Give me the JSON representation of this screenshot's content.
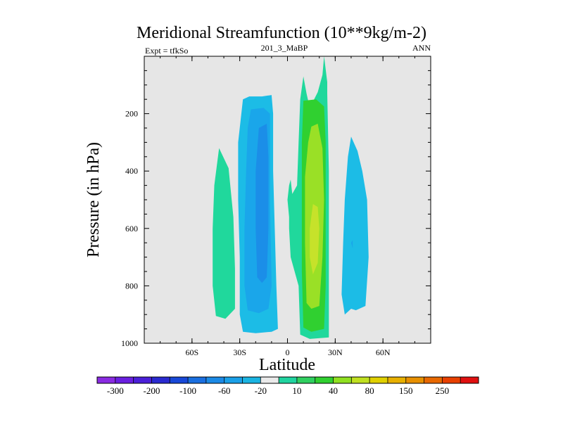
{
  "chart_data": {
    "type": "contour",
    "title": "Meridional Streamfunction (10**9kg/m-2)",
    "subtitle_left": "Expt = tfkSo",
    "subtitle_center": "201_3_MaBP",
    "subtitle_right": "ANN",
    "xlabel": "Latitude",
    "ylabel": "Pressure (in hPa)",
    "xlim": [
      -90,
      90
    ],
    "ylim": [
      1000,
      0
    ],
    "x_ticks": [
      {
        "value": -60,
        "label": "60S"
      },
      {
        "value": -30,
        "label": "30S"
      },
      {
        "value": 0,
        "label": "0"
      },
      {
        "value": 30,
        "label": "30N"
      },
      {
        "value": 60,
        "label": "60N"
      }
    ],
    "y_ticks": [
      {
        "value": 200,
        "label": "200"
      },
      {
        "value": 400,
        "label": "400"
      },
      {
        "value": 600,
        "label": "600"
      },
      {
        "value": 800,
        "label": "800"
      },
      {
        "value": 1000,
        "label": "1000"
      }
    ],
    "background_color": "#e6e6e6",
    "colorbar": {
      "colors": [
        "#8a2be2",
        "#6a1fe0",
        "#4a1fd8",
        "#2a2ad0",
        "#1848d8",
        "#1a6fe0",
        "#1b8ae6",
        "#1aa0e8",
        "#1ab4e2",
        "#eaeaea",
        "#20d4a0",
        "#30d060",
        "#30d030",
        "#90e020",
        "#c0e020",
        "#e0d000",
        "#e8b000",
        "#e89000",
        "#e86800",
        "#e84000",
        "#e01010"
      ],
      "labels": [
        "-300",
        "-200",
        "-100",
        "-60",
        "-20",
        "10",
        "40",
        "80",
        "150",
        "250"
      ]
    },
    "regions": [
      {
        "level": 10,
        "color": "#20d89c",
        "points": [
          [
            -43,
            320
          ],
          [
            -37,
            390
          ],
          [
            -34,
            560
          ],
          [
            -33,
            740
          ],
          [
            -33,
            880
          ],
          [
            -39,
            915
          ],
          [
            -45,
            905
          ],
          [
            -47,
            800
          ],
          [
            -47,
            600
          ],
          [
            -46,
            450
          ]
        ]
      },
      {
        "level": -20,
        "color": "#1cbce6",
        "points": [
          [
            -28,
            150
          ],
          [
            -24,
            140
          ],
          [
            -16,
            140
          ],
          [
            -10,
            135
          ],
          [
            -9,
            200
          ],
          [
            -9,
            400
          ],
          [
            -8,
            600
          ],
          [
            -7,
            800
          ],
          [
            -6,
            950
          ],
          [
            -10,
            960
          ],
          [
            -20,
            965
          ],
          [
            -28,
            960
          ],
          [
            -30,
            900
          ],
          [
            -30,
            700
          ],
          [
            -31,
            500
          ],
          [
            -31,
            300
          ]
        ]
      },
      {
        "level": -60,
        "color": "#1aa6ea",
        "points": [
          [
            -23,
            185
          ],
          [
            -15,
            180
          ],
          [
            -11,
            200
          ],
          [
            -11,
            500
          ],
          [
            -10,
            800
          ],
          [
            -12,
            880
          ],
          [
            -18,
            895
          ],
          [
            -25,
            885
          ],
          [
            -27,
            800
          ],
          [
            -27,
            600
          ],
          [
            -26,
            400
          ],
          [
            -25,
            250
          ]
        ]
      },
      {
        "level": -100,
        "color": "#1b8ee8",
        "points": [
          [
            -18,
            250
          ],
          [
            -13,
            235
          ],
          [
            -12,
            350
          ],
          [
            -12,
            600
          ],
          [
            -13,
            770
          ],
          [
            -16,
            790
          ],
          [
            -19,
            770
          ],
          [
            -20,
            600
          ],
          [
            -20,
            400
          ]
        ]
      },
      {
        "level": -20,
        "color": "#1cbce6",
        "points": [
          [
            40,
            280
          ],
          [
            44,
            330
          ],
          [
            47,
            400
          ],
          [
            50,
            500
          ],
          [
            51,
            700
          ],
          [
            49,
            870
          ],
          [
            43,
            885
          ],
          [
            40,
            880
          ],
          [
            36,
            900
          ],
          [
            34,
            830
          ],
          [
            35,
            650
          ],
          [
            36,
            500
          ],
          [
            38,
            350
          ]
        ]
      },
      {
        "level": -60,
        "color": "#1aa6ea",
        "points": [
          [
            40,
            650
          ],
          [
            41,
            640
          ],
          [
            41,
            670
          ]
        ]
      },
      {
        "level": 10,
        "color": "#20d89c",
        "points": [
          [
            10,
            70
          ],
          [
            12,
            130
          ],
          [
            14,
            180
          ],
          [
            19,
            125
          ],
          [
            22,
            65
          ],
          [
            23,
            0
          ],
          [
            25,
            90
          ],
          [
            25,
            130
          ],
          [
            26,
            400
          ],
          [
            26,
            700
          ],
          [
            26,
            980
          ],
          [
            14,
            985
          ],
          [
            8,
            970
          ],
          [
            7,
            800
          ],
          [
            4,
            740
          ],
          [
            2,
            700
          ],
          [
            1,
            600
          ],
          [
            1,
            560
          ],
          [
            0,
            500
          ],
          [
            1,
            450
          ],
          [
            2,
            430
          ],
          [
            3,
            480
          ],
          [
            6,
            450
          ],
          [
            7,
            300
          ],
          [
            8,
            150
          ]
        ]
      },
      {
        "level": 40,
        "color": "#30d030",
        "points": [
          [
            10,
            155
          ],
          [
            18,
            150
          ],
          [
            23,
            175
          ],
          [
            24,
            300
          ],
          [
            24,
            600
          ],
          [
            24,
            800
          ],
          [
            23,
            950
          ],
          [
            15,
            960
          ],
          [
            10,
            945
          ],
          [
            9,
            750
          ],
          [
            9,
            500
          ],
          [
            9,
            300
          ]
        ]
      },
      {
        "level": 80,
        "color": "#9ae026",
        "points": [
          [
            15,
            245
          ],
          [
            19,
            235
          ],
          [
            22,
            320
          ],
          [
            23,
            500
          ],
          [
            22,
            700
          ],
          [
            20,
            870
          ],
          [
            15,
            880
          ],
          [
            12,
            860
          ],
          [
            11,
            650
          ],
          [
            11,
            420
          ],
          [
            13,
            300
          ]
        ]
      },
      {
        "level": 150,
        "color": "#c6e22a",
        "points": [
          [
            16,
            515
          ],
          [
            19,
            525
          ],
          [
            20,
            600
          ],
          [
            19,
            720
          ],
          [
            16,
            760
          ],
          [
            14,
            700
          ],
          [
            14,
            600
          ]
        ]
      }
    ]
  }
}
